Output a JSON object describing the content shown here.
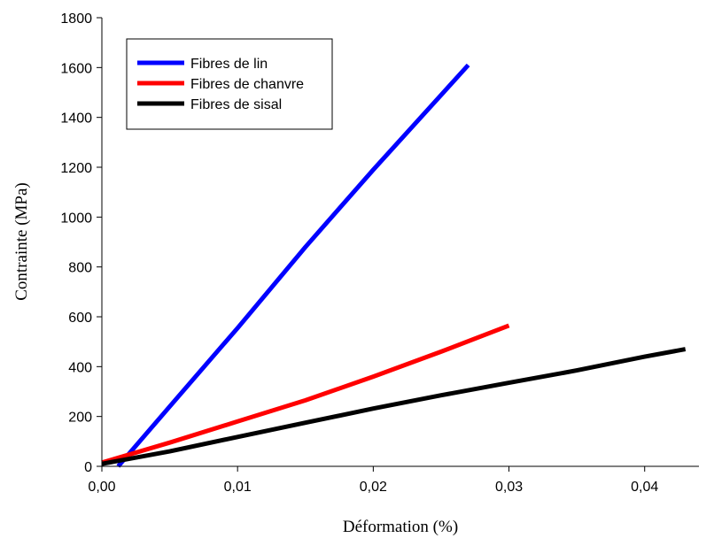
{
  "chart_data": {
    "type": "line",
    "xlabel": "Déformation (%)",
    "ylabel": "Contrainte (MPa)",
    "xlim": [
      0,
      0.044
    ],
    "ylim": [
      0,
      1800
    ],
    "x_ticks": [
      0,
      0.01,
      0.02,
      0.03,
      0.04
    ],
    "x_tick_labels": [
      "0,00",
      "0,01",
      "0,02",
      "0,03",
      "0,04"
    ],
    "y_ticks": [
      0,
      200,
      400,
      600,
      800,
      1000,
      1200,
      1400,
      1600,
      1800
    ],
    "y_tick_labels": [
      "0",
      "200",
      "400",
      "600",
      "800",
      "1000",
      "1200",
      "1400",
      "1600",
      "1800"
    ],
    "grid": false,
    "legend_position": "top-left",
    "series": [
      {
        "name": "Fibres de lin",
        "color": "#0000ff",
        "x": [
          0.0012,
          0.005,
          0.01,
          0.015,
          0.02,
          0.025,
          0.027
        ],
        "y": [
          0,
          240,
          555,
          880,
          1190,
          1490,
          1610
        ]
      },
      {
        "name": "Fibres de chanvre",
        "color": "#ff0000",
        "x": [
          0,
          0.005,
          0.01,
          0.015,
          0.02,
          0.025,
          0.03
        ],
        "y": [
          15,
          95,
          180,
          265,
          360,
          460,
          565
        ]
      },
      {
        "name": "Fibres de sisal",
        "color": "#000000",
        "x": [
          0,
          0.005,
          0.01,
          0.015,
          0.02,
          0.025,
          0.03,
          0.035,
          0.04,
          0.043
        ],
        "y": [
          10,
          60,
          118,
          175,
          232,
          285,
          335,
          385,
          440,
          470
        ]
      }
    ]
  }
}
